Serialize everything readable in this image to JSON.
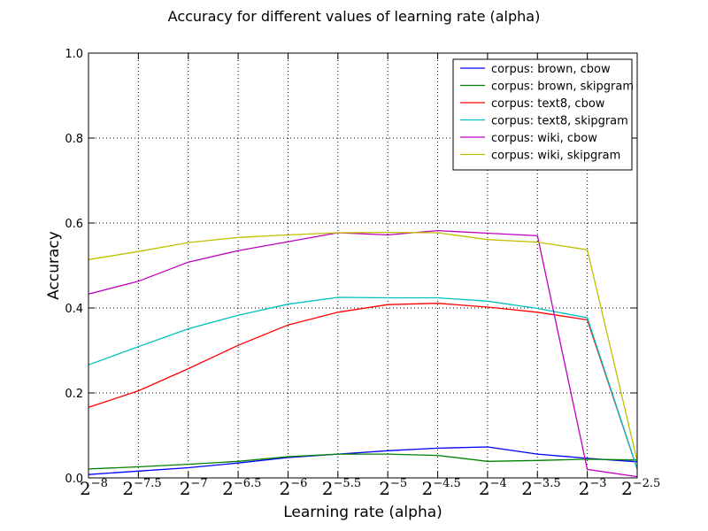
{
  "chart_data": {
    "type": "line",
    "title": "Accuracy for different values of learning rate (alpha)",
    "xlabel": "Learning rate (alpha)",
    "ylabel": "Accuracy",
    "x_exponents": [
      -8,
      -7.5,
      -7,
      -6.5,
      -6,
      -5.5,
      -5,
      -4.5,
      -4,
      -3.5,
      -3,
      -2.5
    ],
    "x_tick_base": "2",
    "x_tick_exponent_labels": [
      "−8",
      "−7.5",
      "−7",
      "−6.5",
      "−6",
      "−5.5",
      "−5",
      "−4.5",
      "−4",
      "−3.5",
      "−3",
      "−2.5"
    ],
    "xlim": [
      -8,
      -2.5
    ],
    "ylim": [
      0,
      1
    ],
    "y_ticks": [
      0,
      0.2,
      0.4,
      0.6,
      0.8,
      1.0
    ],
    "y_tick_labels": [
      "0.0",
      "0.2",
      "0.4",
      "0.6",
      "0.8",
      "1.0"
    ],
    "grid": true,
    "legend_position": "top-right",
    "series": [
      {
        "name": "corpus: brown, cbow",
        "color": "#0000ff",
        "values": [
          0.008,
          0.016,
          0.024,
          0.035,
          0.048,
          0.056,
          0.064,
          0.07,
          0.073,
          0.056,
          0.046,
          0.038
        ]
      },
      {
        "name": "corpus: brown, skipgram",
        "color": "#008000",
        "values": [
          0.021,
          0.026,
          0.032,
          0.039,
          0.05,
          0.056,
          0.056,
          0.053,
          0.039,
          0.041,
          0.044,
          0.042
        ]
      },
      {
        "name": "corpus: text8, cbow",
        "color": "#ff0000",
        "values": [
          0.166,
          0.205,
          0.257,
          0.312,
          0.36,
          0.39,
          0.408,
          0.411,
          0.402,
          0.39,
          0.372,
          0.021
        ]
      },
      {
        "name": "corpus: text8, skipgram",
        "color": "#00bfbf",
        "values": [
          0.266,
          0.309,
          0.351,
          0.383,
          0.409,
          0.425,
          0.424,
          0.424,
          0.416,
          0.399,
          0.377,
          0.021
        ]
      },
      {
        "name": "corpus: wiki, cbow",
        "color": "#bf00bf",
        "values": [
          0.433,
          0.463,
          0.508,
          0.535,
          0.556,
          0.577,
          0.572,
          0.582,
          0.576,
          0.57,
          0.02,
          0.003
        ]
      },
      {
        "name": "corpus: wiki, skipgram",
        "color": "#bfbf00",
        "values": [
          0.514,
          0.533,
          0.554,
          0.566,
          0.572,
          0.577,
          0.578,
          0.577,
          0.561,
          0.555,
          0.537,
          0.04
        ]
      }
    ]
  }
}
